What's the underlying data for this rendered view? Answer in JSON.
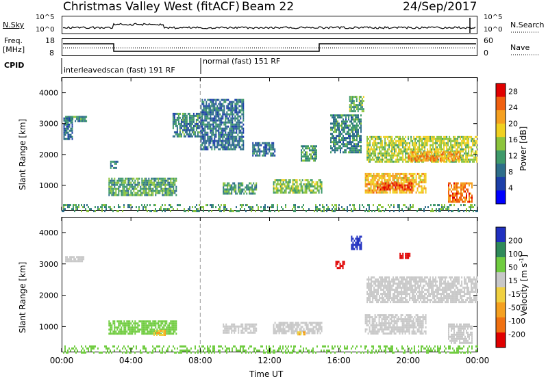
{
  "header": {
    "title": "Christmas Valley West (fitACF)",
    "beam": "Beam 22",
    "date": "24/Sep/2017"
  },
  "panels": {
    "noise": {
      "left_label": "N.Sky",
      "right_label": "N.Search",
      "left_ticks": [
        "10^5",
        "10^0"
      ],
      "right_ticks": [
        "10^5",
        "10^0"
      ]
    },
    "freq": {
      "left_label_line1": "Freq.",
      "left_label_line2": "[MHz]",
      "right_label": "Nave",
      "left_ticks": [
        "18",
        "8"
      ],
      "right_ticks": [
        "60",
        "0"
      ]
    },
    "cpid": {
      "label": "CPID",
      "program1": "interleavedscan (fast) 191 RF",
      "program2": "normal (fast) 151 RF"
    }
  },
  "chart_data": [
    {
      "type": "heatmap",
      "name": "power",
      "ylabel": "Slant Range [km]",
      "xlabel": "Time UT",
      "x_ticks": [
        "00:00",
        "04:00",
        "08:00",
        "12:00",
        "16:00",
        "20:00",
        "00:00"
      ],
      "x_range_hours": [
        0,
        24
      ],
      "y_ticks": [
        1000,
        2000,
        3000,
        4000
      ],
      "ylim": [
        180,
        4500
      ],
      "colorbar": {
        "label": "Power [dB]",
        "ticks": [
          4,
          8,
          12,
          16,
          20,
          24,
          28
        ],
        "range": [
          0,
          30
        ],
        "colors": [
          "#0000ff",
          "#1c3fa8",
          "#2e6e8a",
          "#3f9a6a",
          "#8cc43c",
          "#f0d020",
          "#f5a020",
          "#f06010",
          "#e00000"
        ]
      },
      "regions": [
        {
          "t0": 0.2,
          "t1": 1.4,
          "r0": 3100,
          "r1": 3250,
          "level": 10
        },
        {
          "t0": 0.1,
          "t1": 0.6,
          "r0": 2500,
          "r1": 3200,
          "level": 8
        },
        {
          "t0": 2.7,
          "t1": 6.6,
          "r0": 700,
          "r1": 1250,
          "level": 12
        },
        {
          "t0": 2.8,
          "t1": 3.3,
          "r0": 1600,
          "r1": 1800,
          "level": 8
        },
        {
          "t0": 6.4,
          "t1": 8.0,
          "r0": 2600,
          "r1": 3350,
          "level": 10
        },
        {
          "t0": 8.0,
          "t1": 10.5,
          "r0": 2200,
          "r1": 3800,
          "level": 8
        },
        {
          "t0": 9.3,
          "t1": 11.2,
          "r0": 750,
          "r1": 1100,
          "level": 11
        },
        {
          "t0": 11.0,
          "t1": 12.3,
          "r0": 2000,
          "r1": 2400,
          "level": 8
        },
        {
          "t0": 12.2,
          "t1": 15.0,
          "r0": 800,
          "r1": 1200,
          "level": 14
        },
        {
          "t0": 13.8,
          "t1": 14.7,
          "r0": 1800,
          "r1": 2300,
          "level": 12
        },
        {
          "t0": 15.5,
          "t1": 17.3,
          "r0": 2100,
          "r1": 3300,
          "level": 10
        },
        {
          "t0": 16.6,
          "t1": 17.4,
          "r0": 3400,
          "r1": 3900,
          "level": 13
        },
        {
          "t0": 17.5,
          "t1": 21.0,
          "r0": 800,
          "r1": 1400,
          "level": 20
        },
        {
          "t0": 18.2,
          "t1": 20.2,
          "r0": 850,
          "r1": 1100,
          "level": 26
        },
        {
          "t0": 17.6,
          "t1": 24.0,
          "r0": 1800,
          "r1": 2600,
          "level": 16
        },
        {
          "t0": 20.0,
          "t1": 23.0,
          "r0": 1800,
          "r1": 2100,
          "level": 22
        },
        {
          "t0": 22.3,
          "t1": 23.7,
          "r0": 500,
          "r1": 1100,
          "level": 24
        },
        {
          "t0": 0.0,
          "t1": 24.0,
          "r0": 180,
          "r1": 400,
          "level": 12
        }
      ]
    },
    {
      "type": "heatmap",
      "name": "velocity",
      "ylabel": "Slant Range [km]",
      "xlabel": "Time UT",
      "x_ticks": [
        "00:00",
        "04:00",
        "08:00",
        "12:00",
        "16:00",
        "20:00",
        "00:00"
      ],
      "x_range_hours": [
        0,
        24
      ],
      "y_ticks": [
        1000,
        2000,
        3000,
        4000
      ],
      "ylim": [
        180,
        4500
      ],
      "colorbar": {
        "label": "Velocity [m s^-1]",
        "ticks": [
          200,
          100,
          50,
          15,
          -15,
          -50,
          -100,
          -200
        ],
        "colors": [
          "#2030c0",
          "#2f8a5a",
          "#70cc40",
          "#c8c8c8",
          "#f0d040",
          "#f5a020",
          "#f07010",
          "#e00000"
        ]
      },
      "regions": [
        {
          "t0": 0.2,
          "t1": 1.3,
          "r0": 3100,
          "r1": 3250,
          "v": 0
        },
        {
          "t0": 2.7,
          "t1": 6.6,
          "r0": 750,
          "r1": 1200,
          "v": 40
        },
        {
          "t0": 5.3,
          "t1": 6.0,
          "r0": 750,
          "r1": 900,
          "v": -40
        },
        {
          "t0": 9.3,
          "t1": 11.2,
          "r0": 800,
          "r1": 1100,
          "v": 0
        },
        {
          "t0": 12.2,
          "t1": 15.0,
          "r0": 800,
          "r1": 1150,
          "v": 0
        },
        {
          "t0": 13.6,
          "t1": 14.0,
          "r0": 750,
          "r1": 850,
          "v": -50
        },
        {
          "t0": 16.7,
          "t1": 17.3,
          "r0": 3500,
          "r1": 3900,
          "v": 200
        },
        {
          "t0": 15.8,
          "t1": 16.3,
          "r0": 2900,
          "r1": 3100,
          "v": -200
        },
        {
          "t0": 17.5,
          "t1": 21.0,
          "r0": 800,
          "r1": 1400,
          "v": 0
        },
        {
          "t0": 17.6,
          "t1": 24.0,
          "r0": 1800,
          "r1": 2600,
          "v": 0
        },
        {
          "t0": 22.3,
          "t1": 23.7,
          "r0": 500,
          "r1": 1100,
          "v": 0
        },
        {
          "t0": 19.5,
          "t1": 20.1,
          "r0": 3200,
          "r1": 3350,
          "v": -200
        },
        {
          "t0": 0.0,
          "t1": 24.0,
          "r0": 180,
          "r1": 400,
          "v": 30
        }
      ]
    }
  ]
}
